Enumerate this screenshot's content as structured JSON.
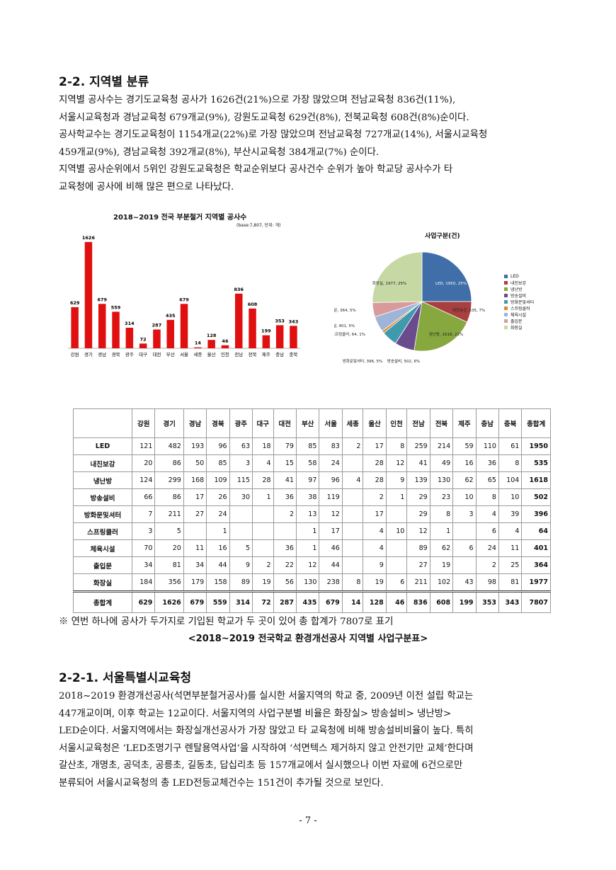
{
  "section_title": "2-2. 지역별 분류",
  "intro_lines": [
    " 지역별 공사수는 경기도교육청 공사가 1626건(21%)으로 가장 많았으며 전남교육청 836건(11%),",
    "서울시교육청과 경남교육청 679개교(9%), 강원도교육청 629건(8%), 전북교육청 608건(8%)순이다.",
    "공사학교수는 경기도교육청이 1154개교(22%)로 가장 많았으며 전남교육청 727개교(14%), 서울시교육청",
    "459개교(9%), 경남교육청 392개교(8%), 부산시교육청 384개교(7%) 순이다.",
    " 지역별 공사순위에서 5위인 강원도교육청은 학교순위보다 공사건수 순위가 높아 학교당 공사수가 타",
    "교육청에 공사에 비해 많은 편으로 나타났다."
  ],
  "chart_data": [
    {
      "type": "bar",
      "title": "2018~2019 전국 부분철거 지역별 공사수",
      "subtitle": "(base:7,807, 단위: 개)",
      "categories": [
        "강원",
        "경기",
        "경남",
        "경북",
        "광주",
        "대구",
        "대전",
        "부산",
        "서울",
        "세종",
        "울산",
        "인천",
        "전남",
        "전북",
        "제주",
        "충남",
        "충북"
      ],
      "values": [
        629,
        1626,
        679,
        559,
        314,
        72,
        287,
        435,
        679,
        14,
        128,
        46,
        836,
        608,
        199,
        353,
        343
      ],
      "ylim": [
        0,
        1700
      ],
      "color": "#e01010",
      "grid": false
    },
    {
      "type": "pie",
      "title": "사업구분(건)",
      "labels": [
        "LED",
        "내진보강",
        "냉난방",
        "방송설비",
        "방화문및셔터",
        "스프링클러",
        "체육시설",
        "출입문",
        "화장실"
      ],
      "values": [
        1950,
        535,
        1618,
        502,
        396,
        64,
        401,
        364,
        1977
      ],
      "percents": [
        25,
        7,
        21,
        6,
        5,
        1,
        5,
        5,
        25
      ],
      "slice_labels": [
        "LED, 1950, 25%",
        "내진보강, 535, 7%",
        "냉난방, 1618, 21%",
        "방송설비, 502, 6%",
        "방화문및셔터, 396, 5%",
        "스프링클러, 64, 1%",
        "체육시설, 401, 5%",
        "출입문, 364, 5%",
        "화장실, 1977, 25%"
      ],
      "colors": [
        "#3f6ea8",
        "#a8403f",
        "#86a83f",
        "#6a4c8e",
        "#3f9aae",
        "#e08a2c",
        "#9fb4d8",
        "#d89a9a",
        "#c6d8a4"
      ],
      "legend_position": "right"
    }
  ],
  "table": {
    "corner": "",
    "columns": [
      "강원",
      "경기",
      "경남",
      "경북",
      "광주",
      "대구",
      "대전",
      "부산",
      "서울",
      "세종",
      "울산",
      "인천",
      "전남",
      "전북",
      "제주",
      "충남",
      "충북",
      "총합계"
    ],
    "rows": [
      {
        "label": "LED",
        "cells": [
          "121",
          "482",
          "193",
          "96",
          "63",
          "18",
          "79",
          "85",
          "83",
          "2",
          "17",
          "8",
          "259",
          "214",
          "59",
          "110",
          "61",
          "1950"
        ]
      },
      {
        "label": "내진보강",
        "cells": [
          "20",
          "86",
          "50",
          "85",
          "3",
          "4",
          "15",
          "58",
          "24",
          "",
          "28",
          "12",
          "41",
          "49",
          "16",
          "36",
          "8",
          "535"
        ]
      },
      {
        "label": "냉난방",
        "cells": [
          "124",
          "299",
          "168",
          "109",
          "115",
          "28",
          "41",
          "97",
          "96",
          "4",
          "28",
          "9",
          "139",
          "130",
          "62",
          "65",
          "104",
          "1618"
        ]
      },
      {
        "label": "방송설비",
        "cells": [
          "66",
          "86",
          "17",
          "26",
          "30",
          "1",
          "36",
          "38",
          "119",
          "",
          "2",
          "1",
          "29",
          "23",
          "10",
          "8",
          "10",
          "502"
        ]
      },
      {
        "label": "방화문및셔터",
        "cells": [
          "7",
          "211",
          "27",
          "24",
          "",
          "",
          "2",
          "13",
          "12",
          "",
          "17",
          "",
          "29",
          "8",
          "3",
          "4",
          "39",
          "396"
        ]
      },
      {
        "label": "스프링클러",
        "cells": [
          "3",
          "5",
          "",
          "1",
          "",
          "",
          "",
          "1",
          "17",
          "",
          "4",
          "10",
          "12",
          "1",
          "",
          "6",
          "4",
          "64"
        ]
      },
      {
        "label": "체육시설",
        "cells": [
          "70",
          "20",
          "11",
          "16",
          "5",
          "",
          "36",
          "1",
          "46",
          "",
          "4",
          "",
          "89",
          "62",
          "6",
          "24",
          "11",
          "401"
        ]
      },
      {
        "label": "출입문",
        "cells": [
          "34",
          "81",
          "34",
          "44",
          "9",
          "2",
          "22",
          "12",
          "44",
          "",
          "9",
          "",
          "27",
          "19",
          "",
          "2",
          "25",
          "364"
        ]
      },
      {
        "label": "화장실",
        "cells": [
          "184",
          "356",
          "179",
          "158",
          "89",
          "19",
          "56",
          "130",
          "238",
          "8",
          "19",
          "6",
          "211",
          "102",
          "43",
          "98",
          "81",
          "1977"
        ]
      }
    ],
    "total": {
      "label": "총합계",
      "cells": [
        "629",
        "1626",
        "679",
        "559",
        "314",
        "72",
        "287",
        "435",
        "679",
        "14",
        "128",
        "46",
        "836",
        "608",
        "199",
        "353",
        "343",
        "7807"
      ]
    }
  },
  "table_note": "※ 연번 하나에 공사가 두가지로 기입된 학교가 두 곳이 있어 총 합계가 7807로 표기",
  "table_caption": "<2018~2019 전국학교 환경개선공사 지역별 사업구분표>",
  "subsection_title": "2-2-1. 서울특별시교육청",
  "seoul_lines": [
    " 2018~2019 환경개선공사(석면부분철거공사)를 실시한 서울지역의 학교 중, 2009년 이전 설립 학교는",
    "447개교이며, 이후 학교는 12교이다. 서울지역의 사업구분별 비율은 화장실> 방송설비> 냉난방>",
    "LED순이다. 서울지역에서는 화장실개선공사가 가장 많았고 타 교육청에 비해 방송설비비율이 높다. 특히",
    "서울시교육청은 ‘LED조명기구 렌탈용역사업’을 시작하여 ‘석면텍스 제거하지 않고 안전기만 교체’한다며",
    "갈산초, 개명초, 공덕초, 공릉초, 길동초, 답십리초 등 157개교에서 실시했으나 이번 자료에 6건으로만",
    "분류되어 서울시교육청의 총 LED전등교체건수는 151건이 추가될 것으로 보인다."
  ],
  "page_number": "- 7 -"
}
